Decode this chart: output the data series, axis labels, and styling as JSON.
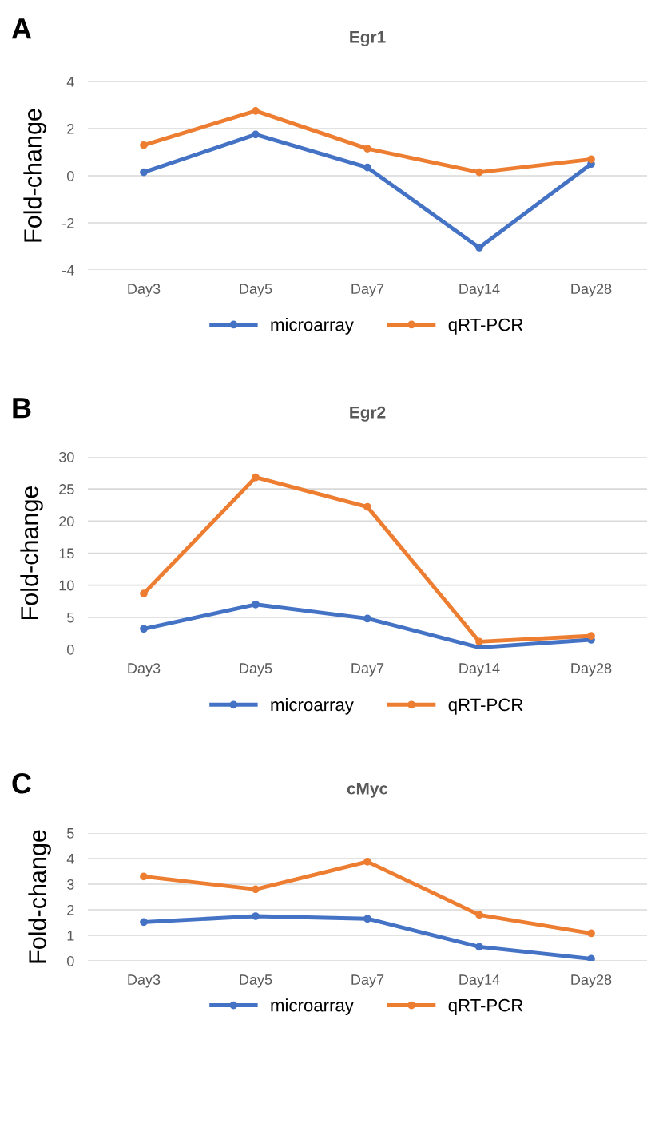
{
  "chart_data": [
    {
      "type": "line",
      "title": "Egr1",
      "ylabel": "Fold-change",
      "annotations": [
        "A"
      ],
      "categories": [
        "Day3",
        "Day5",
        "Day7",
        "Day14",
        "Day28"
      ],
      "ylim": [
        -4,
        4
      ],
      "yticks": [
        -4,
        -2,
        0,
        2,
        4
      ],
      "grid": "y",
      "legend": "bottom",
      "marker": "circle",
      "line_style": "solid",
      "series": [
        {
          "name": "microarray",
          "color": "#4472c4",
          "values": [
            0.15,
            1.75,
            0.35,
            -3.05,
            0.5
          ]
        },
        {
          "name": "qRT-PCR",
          "color": "#ed7d31",
          "values": [
            1.3,
            2.75,
            1.15,
            0.15,
            0.7
          ]
        }
      ]
    },
    {
      "type": "line",
      "title": "Egr2",
      "ylabel": "Fold-change",
      "annotations": [
        "B"
      ],
      "categories": [
        "Day3",
        "Day5",
        "Day7",
        "Day14",
        "Day28"
      ],
      "ylim": [
        0,
        30
      ],
      "yticks": [
        0,
        5,
        10,
        15,
        20,
        25,
        30
      ],
      "grid": "y",
      "legend": "bottom",
      "marker": "circle",
      "line_style": "solid",
      "series": [
        {
          "name": "microarray",
          "color": "#4472c4",
          "values": [
            3.2,
            7.0,
            4.8,
            0.3,
            1.5
          ]
        },
        {
          "name": "qRT-PCR",
          "color": "#ed7d31",
          "values": [
            8.7,
            26.8,
            22.2,
            1.2,
            2.1
          ]
        }
      ]
    },
    {
      "type": "line",
      "title": "cMyc",
      "ylabel": "Fold-change",
      "annotations": [
        "C"
      ],
      "categories": [
        "Day3",
        "Day5",
        "Day7",
        "Day14",
        "Day28"
      ],
      "ylim": [
        0,
        5
      ],
      "yticks": [
        0,
        1,
        2,
        3,
        4,
        5
      ],
      "grid": "y",
      "legend": "bottom",
      "marker": "circle",
      "line_style": "solid",
      "series": [
        {
          "name": "microarray",
          "color": "#4472c4",
          "values": [
            1.52,
            1.75,
            1.65,
            0.55,
            0.08
          ]
        },
        {
          "name": "qRT-PCR",
          "color": "#ed7d31",
          "values": [
            3.3,
            2.8,
            3.88,
            1.8,
            1.08
          ]
        }
      ]
    }
  ]
}
